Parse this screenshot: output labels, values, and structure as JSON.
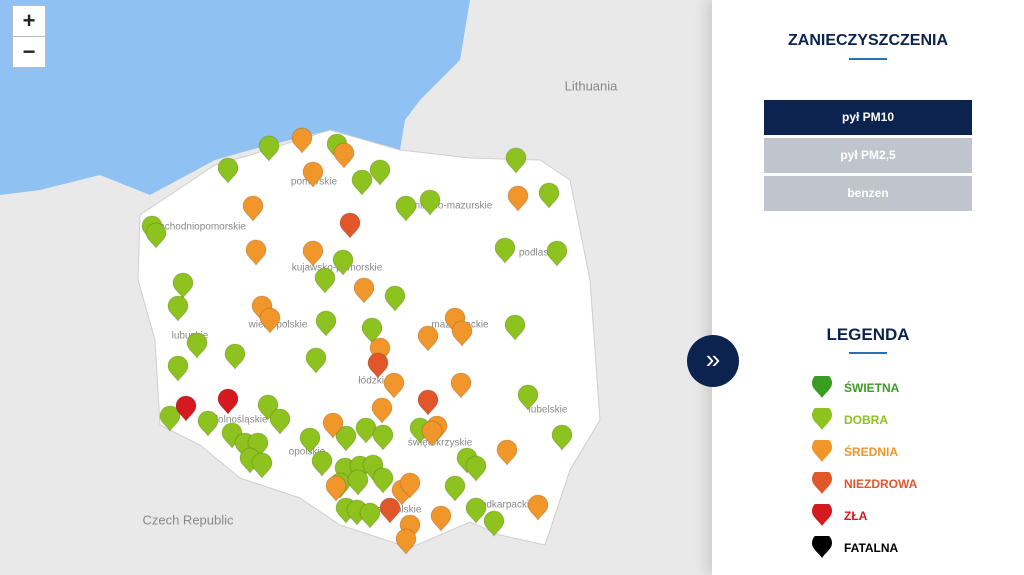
{
  "map": {
    "zoom_in": "+",
    "zoom_out": "−",
    "labels": [
      "Lithuania",
      "pomorskie",
      "zachodniopomorskie",
      "warmińsko-mazurskie",
      "kujawsko-pomorskie",
      "podlaskie",
      "wielkopolskie",
      "lubuskie",
      "mazowieckie",
      "łódzkie",
      "dolnośląskie",
      "lubelskie",
      "opolskie",
      "świętokrzyskie",
      "Czech Republic",
      "małopolskie",
      "podkarpackie"
    ]
  },
  "panel": {
    "toggle": "»",
    "title": "ZANIECZYSZCZENIA",
    "buttons": [
      "pył PM10",
      "pył PM2,5",
      "benzen"
    ],
    "legend_title": "LEGENDA",
    "legend": [
      {
        "label": "ŚWIETNA",
        "color": "#3a9d23"
      },
      {
        "label": "DOBRA",
        "color": "#8dc21f"
      },
      {
        "label": "ŚREDNIA",
        "color": "#f0962a"
      },
      {
        "label": "NIEZDROWA",
        "color": "#e2572a"
      },
      {
        "label": "ZŁA",
        "color": "#d4191f"
      },
      {
        "label": "FATALNA",
        "color": "#000000"
      }
    ]
  }
}
